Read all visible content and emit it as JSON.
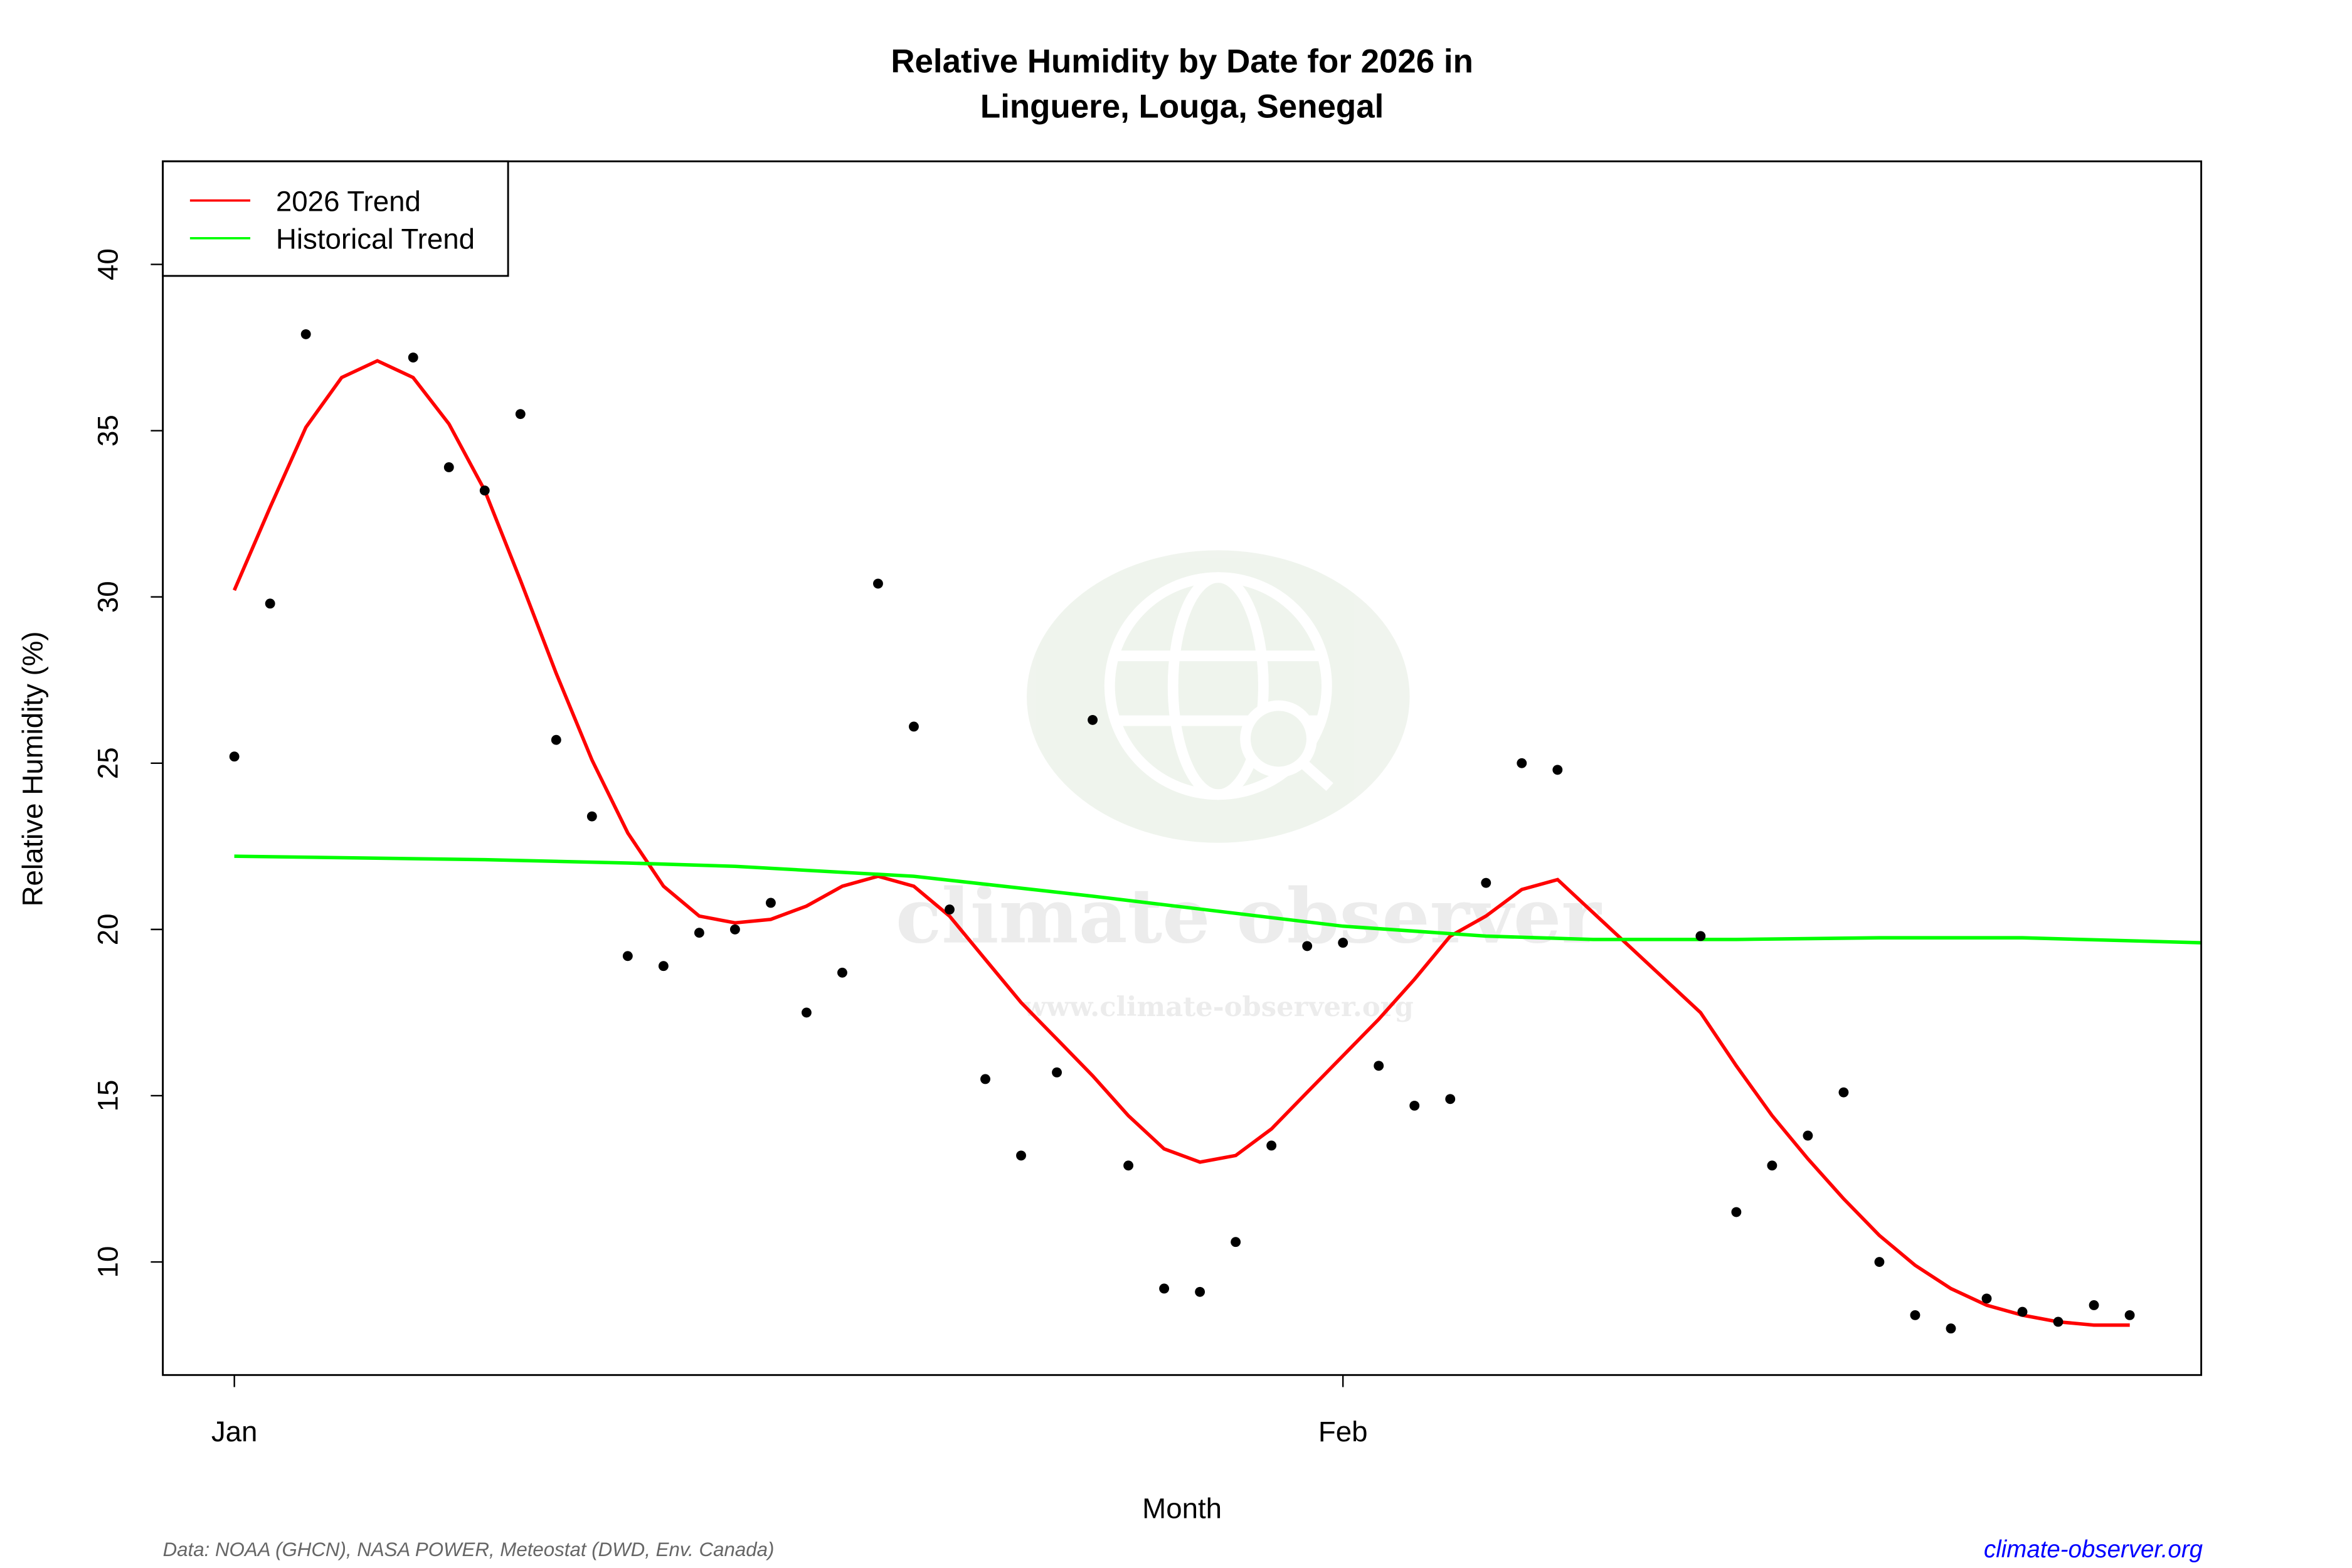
{
  "chart_data": {
    "type": "scatter",
    "title_line1": "Relative Humidity by Date for 2026 in",
    "title_line2": "Linguere, Louga, Senegal",
    "xlabel": "Month",
    "ylabel": "Relative Humidity (%)",
    "x_ticks": [
      {
        "date": "2026-01-01",
        "label": "Jan"
      },
      {
        "date": "2026-02-01",
        "label": "Feb"
      }
    ],
    "y_ticks": [
      10,
      15,
      20,
      25,
      30,
      35,
      40
    ],
    "xlim": [
      "2025-12-30",
      "2026-02-25"
    ],
    "ylim": [
      6.6,
      43.1
    ],
    "grid": false,
    "legend": {
      "position": "top-left",
      "entries": [
        {
          "label": "2026 Trend",
          "color": "#ff0000"
        },
        {
          "label": "Historical Trend",
          "color": "#00ff00"
        }
      ]
    },
    "points": [
      [
        "2026-01-01",
        25.2
      ],
      [
        "2026-01-02",
        29.8
      ],
      [
        "2026-01-03",
        37.9
      ],
      [
        "2026-01-06",
        37.2
      ],
      [
        "2026-01-07",
        33.9
      ],
      [
        "2026-01-08",
        33.2
      ],
      [
        "2026-01-09",
        35.5
      ],
      [
        "2026-01-10",
        25.7
      ],
      [
        "2026-01-11",
        23.4
      ],
      [
        "2026-01-12",
        19.2
      ],
      [
        "2026-01-13",
        18.9
      ],
      [
        "2026-01-14",
        19.9
      ],
      [
        "2026-01-15",
        20.0
      ],
      [
        "2026-01-16",
        20.8
      ],
      [
        "2026-01-17",
        17.5
      ],
      [
        "2026-01-18",
        18.7
      ],
      [
        "2026-01-19",
        30.4
      ],
      [
        "2026-01-20",
        26.1
      ],
      [
        "2026-01-21",
        20.6
      ],
      [
        "2026-01-22",
        15.5
      ],
      [
        "2026-01-23",
        13.2
      ],
      [
        "2026-01-24",
        15.7
      ],
      [
        "2026-01-25",
        26.3
      ],
      [
        "2026-01-26",
        12.9
      ],
      [
        "2026-01-27",
        9.2
      ],
      [
        "2026-01-28",
        9.1
      ],
      [
        "2026-01-29",
        10.6
      ],
      [
        "2026-01-30",
        13.5
      ],
      [
        "2026-01-31",
        19.5
      ],
      [
        "2026-02-01",
        19.6
      ],
      [
        "2026-02-02",
        15.9
      ],
      [
        "2026-02-03",
        14.7
      ],
      [
        "2026-02-04",
        14.9
      ],
      [
        "2026-02-05",
        21.4
      ],
      [
        "2026-02-06",
        25.0
      ],
      [
        "2026-02-07",
        24.8
      ],
      [
        "2026-02-11",
        19.8
      ],
      [
        "2026-02-12",
        11.5
      ],
      [
        "2026-02-13",
        12.9
      ],
      [
        "2026-02-14",
        13.8
      ],
      [
        "2026-02-15",
        15.1
      ],
      [
        "2026-02-16",
        10.0
      ],
      [
        "2026-02-17",
        8.4
      ],
      [
        "2026-02-18",
        8.0
      ],
      [
        "2026-02-19",
        8.9
      ],
      [
        "2026-02-20",
        8.5
      ],
      [
        "2026-02-21",
        8.2
      ],
      [
        "2026-02-22",
        8.7
      ],
      [
        "2026-02-23",
        8.4
      ]
    ],
    "series": [
      {
        "name": "2026 Trend",
        "color": "#ff0000",
        "values": [
          [
            "2026-01-01",
            30.2
          ],
          [
            "2026-01-02",
            32.7
          ],
          [
            "2026-01-03",
            35.1
          ],
          [
            "2026-01-04",
            36.6
          ],
          [
            "2026-01-05",
            37.1
          ],
          [
            "2026-01-06",
            36.6
          ],
          [
            "2026-01-07",
            35.2
          ],
          [
            "2026-01-08",
            33.2
          ],
          [
            "2026-01-09",
            30.5
          ],
          [
            "2026-01-10",
            27.7
          ],
          [
            "2026-01-11",
            25.1
          ],
          [
            "2026-01-12",
            22.9
          ],
          [
            "2026-01-13",
            21.3
          ],
          [
            "2026-01-14",
            20.4
          ],
          [
            "2026-01-15",
            20.2
          ],
          [
            "2026-01-16",
            20.3
          ],
          [
            "2026-01-17",
            20.7
          ],
          [
            "2026-01-18",
            21.3
          ],
          [
            "2026-01-19",
            21.6
          ],
          [
            "2026-01-20",
            21.3
          ],
          [
            "2026-01-21",
            20.4
          ],
          [
            "2026-01-22",
            19.1
          ],
          [
            "2026-01-23",
            17.8
          ],
          [
            "2026-01-24",
            16.7
          ],
          [
            "2026-01-25",
            15.6
          ],
          [
            "2026-01-26",
            14.4
          ],
          [
            "2026-01-27",
            13.4
          ],
          [
            "2026-01-28",
            13.0
          ],
          [
            "2026-01-29",
            13.2
          ],
          [
            "2026-01-30",
            14.0
          ],
          [
            "2026-01-31",
            15.1
          ],
          [
            "2026-02-01",
            16.2
          ],
          [
            "2026-02-02",
            17.3
          ],
          [
            "2026-02-03",
            18.5
          ],
          [
            "2026-02-04",
            19.8
          ],
          [
            "2026-02-05",
            20.4
          ],
          [
            "2026-02-06",
            21.2
          ],
          [
            "2026-02-07",
            21.5
          ],
          [
            "2026-02-11",
            17.5
          ],
          [
            "2026-02-12",
            15.9
          ],
          [
            "2026-02-13",
            14.4
          ],
          [
            "2026-02-14",
            13.1
          ],
          [
            "2026-02-15",
            11.9
          ],
          [
            "2026-02-16",
            10.8
          ],
          [
            "2026-02-17",
            9.9
          ],
          [
            "2026-02-18",
            9.2
          ],
          [
            "2026-02-19",
            8.7
          ],
          [
            "2026-02-20",
            8.4
          ],
          [
            "2026-02-21",
            8.2
          ],
          [
            "2026-02-22",
            8.1
          ],
          [
            "2026-02-23",
            8.1
          ]
        ]
      },
      {
        "name": "Historical Trend",
        "color": "#00ff00",
        "values": [
          [
            "2026-01-01",
            22.2
          ],
          [
            "2026-01-08",
            22.1
          ],
          [
            "2026-01-12",
            22.0
          ],
          [
            "2026-01-15",
            21.9
          ],
          [
            "2026-01-20",
            21.6
          ],
          [
            "2026-01-25",
            21.0
          ],
          [
            "2026-02-01",
            20.1
          ],
          [
            "2026-02-05",
            19.8
          ],
          [
            "2026-02-08",
            19.7
          ],
          [
            "2026-02-12",
            19.7
          ],
          [
            "2026-02-16",
            19.75
          ],
          [
            "2026-02-20",
            19.75
          ],
          [
            "2026-02-25",
            19.6
          ]
        ]
      }
    ]
  },
  "watermark": {
    "name": "climate observer",
    "url": "www.climate-observer.org"
  },
  "footer": {
    "source": "Data: NOAA (GHCN), NASA POWER, Meteostat (DWD, Env. Canada)",
    "link": "climate-observer.org",
    "link_color": "#0000ff"
  }
}
